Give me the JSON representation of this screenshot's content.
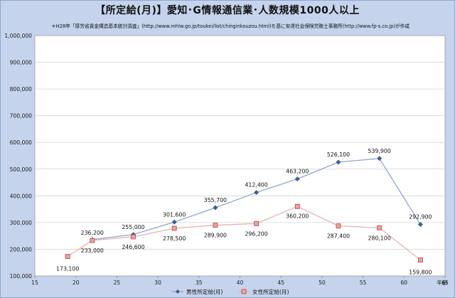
{
  "title": "【所定給(月)】愛知･G情報通信業･人数規模1000人以上",
  "subtitle": "＊H28年「厚労省賃金構造基本統計調査」(http://www.mhlw.go.jp/toukei/list/chinginkouzou.html)を基に安達社会保険労務士事務所(http://www.fp-s.co.jp)が作成",
  "colors": {
    "frame": "#c5d3ec",
    "plot": "#ffffff",
    "male": "#3a5f91",
    "female": "#c0504d",
    "female_line": "#e6b3b3",
    "male_line": "#8fa6c9"
  },
  "chart_data": {
    "type": "line",
    "xlabel": "年齢",
    "xlim": [
      15,
      65
    ],
    "ylim": [
      100000,
      1000000
    ],
    "x_ticks": [
      "15",
      "20",
      "25",
      "30",
      "35",
      "40",
      "45",
      "50",
      "55",
      "60",
      "65"
    ],
    "y_ticks": [
      "100,000",
      "200,000",
      "300,000",
      "400,000",
      "500,000",
      "600,000",
      "700,000",
      "800,000",
      "900,000",
      "1,000,000"
    ],
    "grid": "horizontal",
    "legend_position": "bottom",
    "series": [
      {
        "name": "男性所定給(月)",
        "marker": "diamond",
        "points": [
          {
            "x": 22,
            "y": 236200,
            "label": "236,200"
          },
          {
            "x": 27,
            "y": 255000,
            "label": "255,000"
          },
          {
            "x": 32,
            "y": 301600,
            "label": "301,600"
          },
          {
            "x": 37,
            "y": 355700,
            "label": "355,700"
          },
          {
            "x": 42,
            "y": 412400,
            "label": "412,400"
          },
          {
            "x": 47,
            "y": 463200,
            "label": "463,200"
          },
          {
            "x": 52,
            "y": 526100,
            "label": "526,100"
          },
          {
            "x": 57,
            "y": 539900,
            "label": "539,900"
          },
          {
            "x": 62,
            "y": 292900,
            "label": "292,900"
          }
        ]
      },
      {
        "name": "女性所定給(月)",
        "marker": "square",
        "points": [
          {
            "x": 19,
            "y": 173100,
            "label": "173,100"
          },
          {
            "x": 22,
            "y": 233000,
            "label": "233,000"
          },
          {
            "x": 27,
            "y": 246600,
            "label": "246,600"
          },
          {
            "x": 32,
            "y": 278500,
            "label": "278,500"
          },
          {
            "x": 37,
            "y": 289900,
            "label": "289,900"
          },
          {
            "x": 42,
            "y": 296200,
            "label": "296,200"
          },
          {
            "x": 47,
            "y": 360200,
            "label": "360,200"
          },
          {
            "x": 52,
            "y": 287400,
            "label": "287,400"
          },
          {
            "x": 57,
            "y": 280100,
            "label": "280,100"
          },
          {
            "x": 62,
            "y": 159800,
            "label": "159,800"
          }
        ]
      }
    ]
  }
}
